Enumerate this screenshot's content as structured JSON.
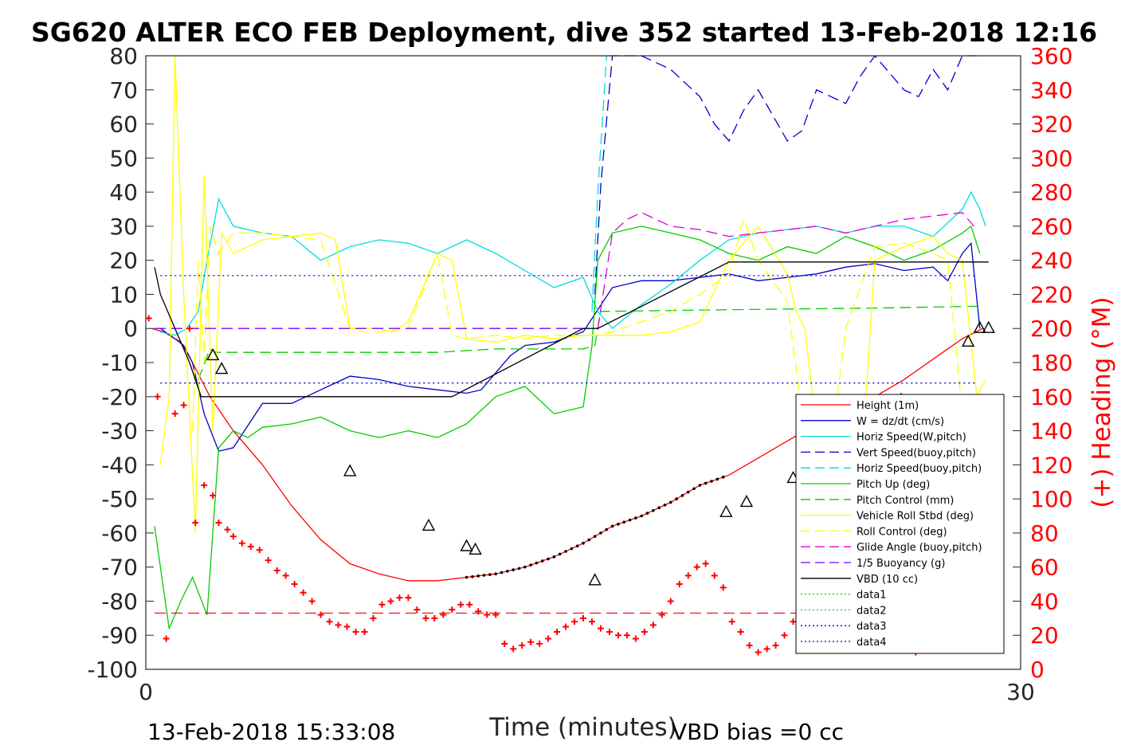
{
  "chart_data": {
    "type": "line",
    "title": "SG620 ALTER ECO FEB Deployment, dive 352 started 13-Feb-2018 12:16",
    "xlabel": "Time (minutes)",
    "ylabel": "",
    "y2label": "(+) Heading (°M)",
    "xlim": [
      0,
      30
    ],
    "ylim": [
      -100,
      80
    ],
    "y2lim": [
      0,
      360
    ],
    "xticks": [
      "0",
      "30"
    ],
    "yticks": [
      "80",
      "70",
      "60",
      "50",
      "40",
      "30",
      "20",
      "10",
      "0",
      "-10",
      "-20",
      "-30",
      "-40",
      "-50",
      "-60",
      "-70",
      "-80",
      "-90",
      "-100"
    ],
    "y2ticks": [
      "360",
      "340",
      "320",
      "300",
      "280",
      "260",
      "240",
      "220",
      "200",
      "180",
      "160",
      "140",
      "120",
      "100",
      "80",
      "60",
      "40",
      "20",
      "0"
    ],
    "grid": false,
    "legend_position": "bottom-right",
    "footer_left": "13-Feb-2018 15:33:08",
    "footer_right": "VBD bias =0 cc",
    "series": [
      {
        "name": "Height (1m)",
        "color": "#ff0000",
        "style": "solid",
        "x": [
          0.2,
          0.6,
          1.2,
          1.6,
          2.2,
          3,
          4,
          5,
          6,
          7,
          8,
          9,
          10,
          11,
          12,
          13,
          14,
          15,
          16,
          17,
          18,
          19,
          20,
          21,
          22,
          23,
          24,
          25,
          26,
          27,
          28,
          28.7
        ],
        "values": [
          0,
          -1,
          -4,
          -10,
          -20,
          -30,
          -40,
          -52,
          -62,
          -69,
          -72,
          -74,
          -74,
          -73,
          -72,
          -70,
          -67,
          -63,
          -58,
          -55,
          -51,
          -46,
          -43,
          -38,
          -33,
          -28,
          -25,
          -20,
          -15,
          -9,
          -3,
          0
        ]
      },
      {
        "name": "W = dz/dt (cm/s)",
        "color": "#0000cc",
        "style": "solid",
        "x": [
          0.5,
          1,
          1.3,
          1.6,
          2,
          2.5,
          3,
          4,
          5,
          6,
          7,
          8,
          9,
          10,
          11,
          11.5,
          12,
          12.5,
          13,
          14,
          15,
          16,
          17,
          18,
          19,
          20,
          21,
          22,
          23,
          24,
          25,
          26,
          27,
          27.5,
          28,
          28.3,
          28.6
        ],
        "values": [
          0,
          -3,
          -5,
          -10,
          -25,
          -36,
          -35,
          -22,
          -22,
          -18,
          -14,
          -15,
          -17,
          -18,
          -19,
          -18,
          -13,
          -8,
          -5,
          -4,
          -1,
          12,
          14,
          14,
          15,
          16,
          14,
          15,
          16,
          18,
          19,
          17,
          18,
          14,
          22,
          25,
          0
        ]
      },
      {
        "name": "Horiz Speed(W,pitch)",
        "color": "#00dddd",
        "style": "solid",
        "x": [
          0.5,
          1,
          1.4,
          1.8,
          2.1,
          2.5,
          3,
          4,
          5,
          6,
          7,
          8,
          9,
          10,
          11,
          12,
          13,
          14,
          15,
          15.5,
          16,
          17,
          18,
          19,
          20,
          21,
          22,
          23,
          24,
          25,
          26,
          27,
          28,
          28.3,
          28.6,
          28.8
        ],
        "values": [
          -1,
          -2,
          0,
          5,
          20,
          38,
          30,
          28,
          27,
          20,
          24,
          26,
          25,
          22,
          26,
          22,
          17,
          12,
          15,
          5,
          0,
          7,
          13,
          20,
          26,
          28,
          29,
          30,
          28,
          30,
          30,
          27,
          35,
          40,
          35,
          30
        ]
      },
      {
        "name": "Vert Speed(buoy,pitch)",
        "color": "#0000cc",
        "style": "dashed",
        "x": [
          15.4,
          15.6,
          16,
          17,
          18,
          19,
          19.5,
          20,
          20.5,
          21,
          22,
          22.5,
          23,
          24,
          24.5,
          25,
          26,
          26.5,
          27,
          27.5,
          28,
          28.5
        ],
        "values": [
          10,
          42,
          80,
          82,
          76,
          68,
          60,
          55,
          64,
          70,
          55,
          58,
          70,
          66,
          74,
          80,
          70,
          68,
          76,
          70,
          80,
          82
        ]
      },
      {
        "name": "Horiz Speed(buoy,pitch)",
        "color": "#00dddd",
        "style": "dashed",
        "x": [
          15.3,
          15.5,
          15.8,
          16.3
        ],
        "values": [
          5,
          40,
          80,
          80
        ]
      },
      {
        "name": "Pitch Up (deg)",
        "color": "#00cc00",
        "style": "solid",
        "x": [
          0.3,
          0.8,
          1.2,
          1.6,
          2.1,
          2.5,
          3,
          3.5,
          4,
          5,
          6,
          7,
          8,
          9,
          10,
          11,
          12,
          13,
          14,
          15,
          15.3,
          15.5,
          16,
          17,
          18,
          19,
          20,
          21,
          22,
          23,
          24,
          25,
          26,
          27,
          28,
          28.3,
          28.6
        ],
        "values": [
          -58,
          -88,
          -80,
          -73,
          -84,
          -35,
          -30,
          -32,
          -29,
          -28,
          -26,
          -30,
          -32,
          -30,
          -32,
          -28,
          -20,
          -17,
          -25,
          -23,
          -5,
          20,
          28,
          30,
          28,
          26,
          22,
          20,
          24,
          22,
          27,
          24,
          20,
          23,
          28,
          30,
          22
        ]
      },
      {
        "name": "Pitch Control (mm)",
        "color": "#00cc00",
        "style": "dashed",
        "x": [
          1.8,
          2.2,
          2.4,
          5,
          10,
          12,
          15,
          15.4,
          15.6,
          20,
          25,
          28.5
        ],
        "values": [
          -15,
          -6,
          -7,
          -7,
          -7,
          -6,
          -6,
          -5,
          5,
          5.5,
          6,
          6.5
        ]
      },
      {
        "name": "Vehicle Roll Stbd (deg)",
        "color": "#ffff00",
        "style": "solid",
        "x": [
          0.5,
          0.8,
          1,
          1.3,
          1.7,
          2,
          2.3,
          2.6,
          3,
          4,
          5,
          6,
          6.5,
          7,
          8,
          8.5,
          9,
          10,
          10.5,
          11,
          12,
          13,
          14,
          15,
          16,
          17,
          18,
          19,
          20,
          21,
          22,
          22.3,
          22.6,
          23,
          23.5,
          24,
          24.5,
          25,
          26,
          27,
          27.5,
          28,
          28.5,
          28.8
        ],
        "values": [
          -40,
          -20,
          80,
          10,
          -60,
          45,
          -30,
          28,
          22,
          26,
          27,
          28,
          26,
          0,
          0,
          -1,
          2,
          22,
          20,
          -3,
          -4,
          -2,
          -3,
          -2,
          -2,
          -2,
          -1,
          2,
          20,
          30,
          16,
          5,
          0,
          -30,
          -40,
          -30,
          -45,
          20,
          24,
          27,
          22,
          20,
          -20,
          -15
        ]
      },
      {
        "name": "Roll Control (deg)",
        "color": "#ffff00",
        "style": "dashed",
        "x": [
          1.6,
          1.8,
          2,
          2.2,
          2.5,
          3,
          4,
          5,
          6,
          7,
          7.5,
          8,
          9,
          10,
          10.5,
          11,
          12,
          13,
          14,
          15,
          15.4,
          16,
          17,
          18,
          19,
          20,
          20.5,
          21,
          22,
          22.5,
          23,
          23.5,
          24,
          25,
          26,
          27,
          27.5,
          28,
          28.3,
          28.6
        ],
        "values": [
          -30,
          20,
          -10,
          30,
          22,
          28,
          28,
          27,
          26,
          0,
          -1,
          -1,
          0,
          22,
          -2,
          -3,
          -2,
          -3,
          -2,
          -2,
          -2,
          -1,
          2,
          5,
          10,
          16,
          32,
          20,
          8,
          -25,
          -38,
          -35,
          0,
          24,
          25,
          22,
          20,
          -25,
          -40,
          -30
        ]
      },
      {
        "name": "Glide Angle (buoy,pitch)",
        "color": "#dd00dd",
        "style": "dashed",
        "x": [
          15.5,
          16,
          16.5,
          17,
          18,
          19,
          20,
          21,
          22,
          23,
          24,
          25,
          26,
          27,
          28,
          28.4
        ],
        "values": [
          0,
          28,
          32,
          34,
          30,
          29,
          27,
          28,
          29,
          30,
          28,
          30,
          32,
          33,
          34,
          30
        ]
      },
      {
        "name": "1/5 Buoyancy (g)",
        "color": "#7700ff",
        "style": "dashed",
        "x": [
          0.3,
          15.2
        ],
        "values": [
          0,
          0
        ]
      },
      {
        "name": "VBD (10 cc)",
        "color": "#000000",
        "style": "solid",
        "x": [
          0.3,
          0.5,
          1,
          1.5,
          1.9,
          10.5,
          15,
          15.5,
          20,
          25,
          28.9
        ],
        "values": [
          18,
          10,
          0,
          -10,
          -20,
          -20,
          0,
          0,
          19.5,
          19.5,
          19.5
        ]
      },
      {
        "name": "data1",
        "color": "#00cc00",
        "style": "dotted",
        "x": [],
        "values": []
      },
      {
        "name": "data2",
        "color": "#00cc00",
        "style": "dotted",
        "x": [],
        "values": []
      },
      {
        "name": "data3",
        "color": "#0000cc",
        "style": "dotted",
        "x": [
          0.5,
          28.5
        ],
        "values": [
          15.5,
          15.5
        ]
      },
      {
        "name": "data4",
        "color": "#0000cc",
        "style": "dotted",
        "x": [
          0.5,
          28.5
        ],
        "values": [
          -16,
          -16
        ]
      }
    ],
    "heading_points": {
      "color": "#ff0000",
      "marker": "+",
      "axis": "right",
      "x": [
        0.1,
        0.4,
        0.7,
        1.0,
        1.3,
        1.5,
        1.7,
        2.0,
        2.3,
        2.5,
        2.8,
        3.0,
        3.3,
        3.6,
        3.9,
        4.2,
        4.5,
        4.8,
        5.1,
        5.4,
        5.7,
        6.0,
        6.3,
        6.6,
        6.9,
        7.2,
        7.5,
        7.8,
        8.1,
        8.4,
        8.7,
        9.0,
        9.3,
        9.6,
        9.9,
        10.2,
        10.5,
        10.8,
        11.1,
        11.4,
        11.7,
        12.0,
        12.3,
        12.6,
        12.9,
        13.2,
        13.5,
        13.8,
        14.1,
        14.4,
        14.7,
        15.0,
        15.3,
        15.6,
        15.9,
        16.2,
        16.5,
        16.8,
        17.1,
        17.4,
        17.7,
        18.0,
        18.3,
        18.6,
        18.9,
        19.2,
        19.5,
        19.8,
        20.1,
        20.4,
        20.7,
        21.0,
        21.3,
        21.6,
        21.9,
        22.2,
        22.5,
        22.8,
        23.1,
        23.4,
        23.7,
        24.0,
        24.3,
        24.6,
        24.9,
        25.2,
        25.5,
        25.8,
        26.1,
        26.4,
        26.7,
        27.0,
        27.3,
        27.6,
        27.9,
        28.2,
        28.5,
        28.8
      ],
      "values": [
        206,
        160,
        18,
        150,
        155,
        200,
        86,
        108,
        102,
        86,
        82,
        78,
        74,
        72,
        70,
        64,
        58,
        55,
        50,
        45,
        40,
        32,
        28,
        26,
        25,
        22,
        22,
        30,
        38,
        40,
        42,
        42,
        35,
        30,
        30,
        32,
        35,
        38,
        38,
        34,
        32,
        32,
        15,
        12,
        14,
        16,
        15,
        18,
        22,
        25,
        28,
        30,
        28,
        24,
        22,
        20,
        20,
        18,
        22,
        26,
        32,
        40,
        50,
        55,
        60,
        62,
        55,
        48,
        28,
        22,
        14,
        10,
        12,
        14,
        20,
        28,
        38,
        42,
        44,
        40,
        38,
        50,
        58,
        55,
        52,
        30,
        22,
        20,
        12,
        10,
        14,
        18,
        22,
        26,
        30,
        34,
        36,
        38
      ]
    },
    "heading_reference": {
      "color": "#ff0000",
      "style": "dashed",
      "x": [
        0.3,
        28.5
      ],
      "value": 33
    },
    "triangle_markers": {
      "x": [
        2.3,
        2.6,
        7.0,
        9.7,
        11.0,
        11.3,
        15.4,
        19.9,
        20.6,
        22.2,
        23.4,
        24.7,
        25.9,
        28.2,
        28.6,
        28.9
      ],
      "values": [
        -8,
        -12,
        -42,
        -58,
        -64,
        -65,
        -74,
        -54,
        -51,
        -44,
        -38,
        -30,
        -21,
        -4,
        0,
        0
      ]
    }
  }
}
